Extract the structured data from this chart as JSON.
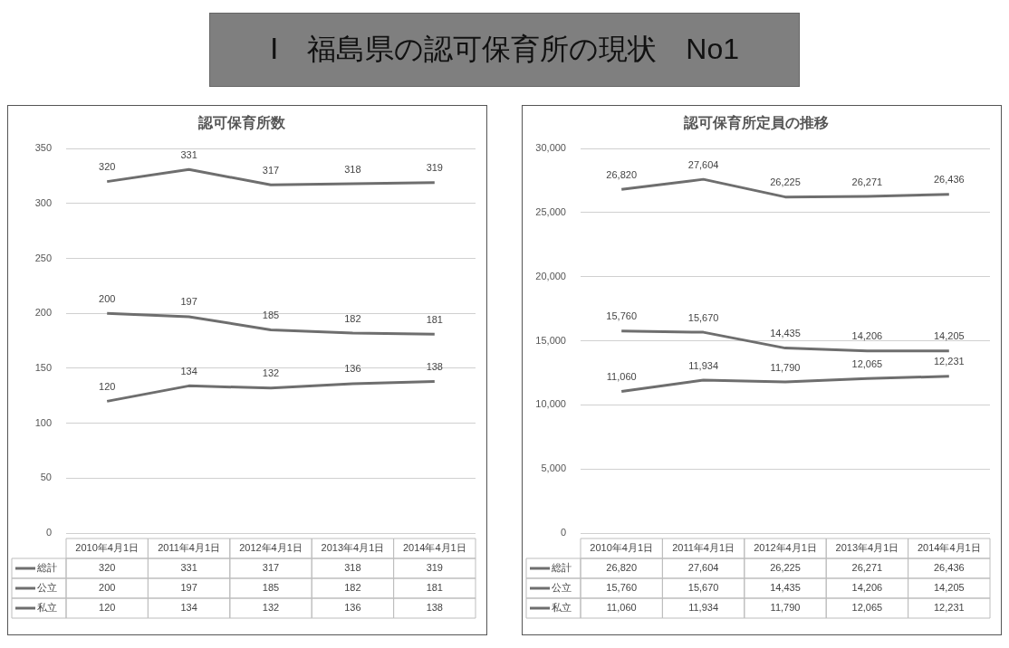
{
  "chart_data": [
    {
      "type": "other",
      "title": "Ⅰ　福島県の認可保育所の現状　No1"
    },
    {
      "type": "line",
      "title": "認可保育所数",
      "categories": [
        "2010年4月1日",
        "2011年4月1日",
        "2012年4月1日",
        "2013年4月1日",
        "2014年4月1日"
      ],
      "series": [
        {
          "name": "総計",
          "color": "#6e6e6e",
          "values": [
            320,
            331,
            317,
            318,
            319
          ],
          "value_labels": [
            "320",
            "331",
            "317",
            "318",
            "319"
          ]
        },
        {
          "name": "公立",
          "color": "#6e6e6e",
          "values": [
            200,
            197,
            185,
            182,
            181
          ],
          "value_labels": [
            "200",
            "197",
            "185",
            "182",
            "181"
          ]
        },
        {
          "name": "私立",
          "color": "#6e6e6e",
          "values": [
            120,
            134,
            132,
            136,
            138
          ],
          "value_labels": [
            "120",
            "134",
            "132",
            "136",
            "138"
          ]
        }
      ],
      "ylim": [
        0,
        350
      ],
      "yticks": [
        0,
        50,
        100,
        150,
        200,
        250,
        300,
        350
      ],
      "grid": "y",
      "legend": "bottom",
      "marker": "none"
    },
    {
      "type": "line",
      "title": "認可保育所定員の推移",
      "categories": [
        "2010年4月1日",
        "2011年4月1日",
        "2012年4月1日",
        "2013年4月1日",
        "2014年4月1日"
      ],
      "series": [
        {
          "name": "総計",
          "color": "#6e6e6e",
          "values": [
            26820,
            27604,
            26225,
            26271,
            26436
          ],
          "value_labels": [
            "26,820",
            "27,604",
            "26,225",
            "26,271",
            "26,436"
          ]
        },
        {
          "name": "公立",
          "color": "#6e6e6e",
          "values": [
            15760,
            15670,
            14435,
            14206,
            14205
          ],
          "value_labels": [
            "15,760",
            "15,670",
            "14,435",
            "14,206",
            "14,205"
          ]
        },
        {
          "name": "私立",
          "color": "#6e6e6e",
          "values": [
            11060,
            11934,
            11790,
            12065,
            12231
          ],
          "value_labels": [
            "11,060",
            "11,934",
            "11,790",
            "12,065",
            "12,231"
          ]
        }
      ],
      "ylim": [
        0,
        30000
      ],
      "yticks": [
        {
          "value": 0,
          "label": "0"
        },
        {
          "value": 5000,
          "label": "5,000"
        },
        {
          "value": 10000,
          "label": "10,000"
        },
        {
          "value": 15000,
          "label": "15,000"
        },
        {
          "value": 20000,
          "label": "20,000"
        },
        {
          "value": 25000,
          "label": "25,000"
        },
        {
          "value": 30000,
          "label": "30,000"
        }
      ],
      "grid": "y",
      "legend": "bottom",
      "marker": "none"
    }
  ]
}
